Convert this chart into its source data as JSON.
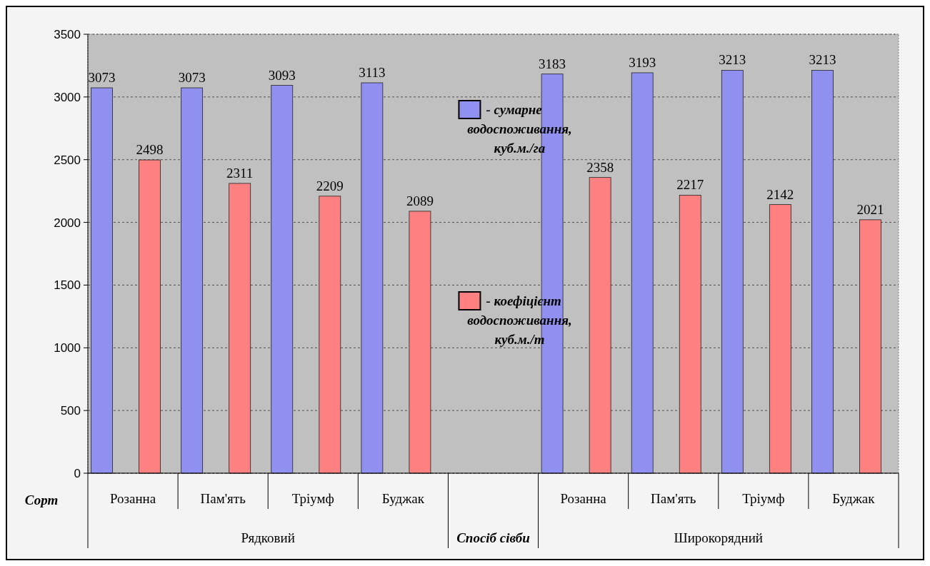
{
  "chart_data": {
    "type": "bar",
    "categories": [
      "Розанна",
      "Пам'ять",
      "Тріумф",
      "Буджак",
      null,
      "Розанна",
      "Пам'ять",
      "Тріумф",
      "Буджак"
    ],
    "series": [
      {
        "name": "- сумарне водоспоживання, куб.м./га",
        "color": "#9090f0",
        "values": [
          3073,
          3073,
          3093,
          3113,
          null,
          3183,
          3193,
          3213,
          3213
        ]
      },
      {
        "name": "- коефіцієнт водоспоживання, куб.м./т",
        "color": "#ff8080",
        "values": [
          2498,
          2311,
          2209,
          2089,
          null,
          2358,
          2217,
          2142,
          2021
        ]
      }
    ],
    "ylim": [
      0,
      3500
    ],
    "yticks": [
      0,
      500,
      1000,
      1500,
      2000,
      2500,
      3000,
      3500
    ],
    "grid": "y",
    "data_labels": true,
    "legend": "center",
    "annotations": [
      "Сорт",
      "Рядковий",
      "Спосіб сівби",
      "Широкорядний"
    ]
  }
}
